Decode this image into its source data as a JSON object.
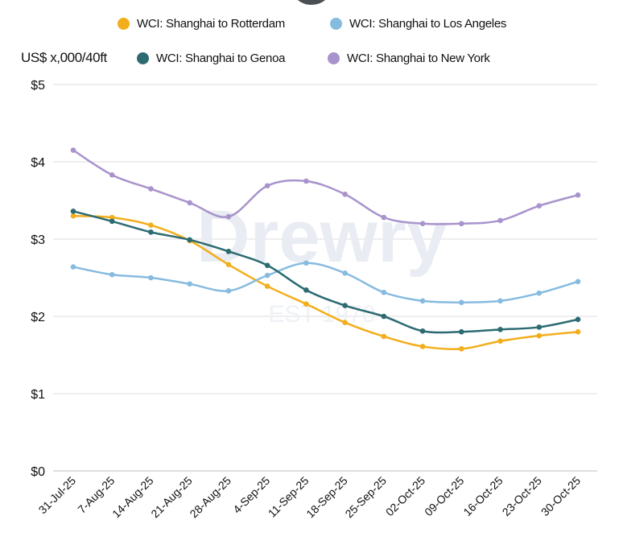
{
  "chart_data": {
    "type": "line",
    "ylabel": "US$ x,000/40ft",
    "ylim": [
      0,
      5
    ],
    "yticks": [
      "$0",
      "$1",
      "$2",
      "$3",
      "$4",
      "$5"
    ],
    "grid": true,
    "legend_placement": "top",
    "categories": [
      "31-Jul-25",
      "7-Aug-25",
      "14-Aug-25",
      "21-Aug-25",
      "28-Aug-25",
      "4-Sep-25",
      "11-Sep-25",
      "18-Sep-25",
      "25-Sep-25",
      "02-Oct-25",
      "09-Oct-25",
      "16-Oct-25",
      "23-Oct-25",
      "30-Oct-25"
    ],
    "series": [
      {
        "name": "WCI: Shanghai to Rotterdam",
        "color": "#f2ae1c",
        "values": [
          3.3,
          3.28,
          3.18,
          2.98,
          2.67,
          2.39,
          2.16,
          1.92,
          1.74,
          1.61,
          1.58,
          1.68,
          1.75,
          1.8
        ]
      },
      {
        "name": "WCI: Shanghai to Los Angeles",
        "color": "#86bbe0",
        "values": [
          2.64,
          2.54,
          2.5,
          2.42,
          2.33,
          2.53,
          2.69,
          2.56,
          2.31,
          2.2,
          2.18,
          2.2,
          2.3,
          2.45
        ]
      },
      {
        "name": "WCI: Shanghai to Genoa",
        "color": "#2c6b72",
        "values": [
          3.36,
          3.23,
          3.09,
          2.99,
          2.84,
          2.66,
          2.34,
          2.14,
          2.0,
          1.81,
          1.8,
          1.83,
          1.86,
          1.96
        ]
      },
      {
        "name": "WCI: Shanghai to New York",
        "color": "#a893cc",
        "values": [
          4.15,
          3.83,
          3.65,
          3.47,
          3.29,
          3.69,
          3.75,
          3.58,
          3.28,
          3.2,
          3.2,
          3.24,
          3.43,
          3.57
        ]
      }
    ],
    "watermark": "Drewry EST 1970"
  }
}
